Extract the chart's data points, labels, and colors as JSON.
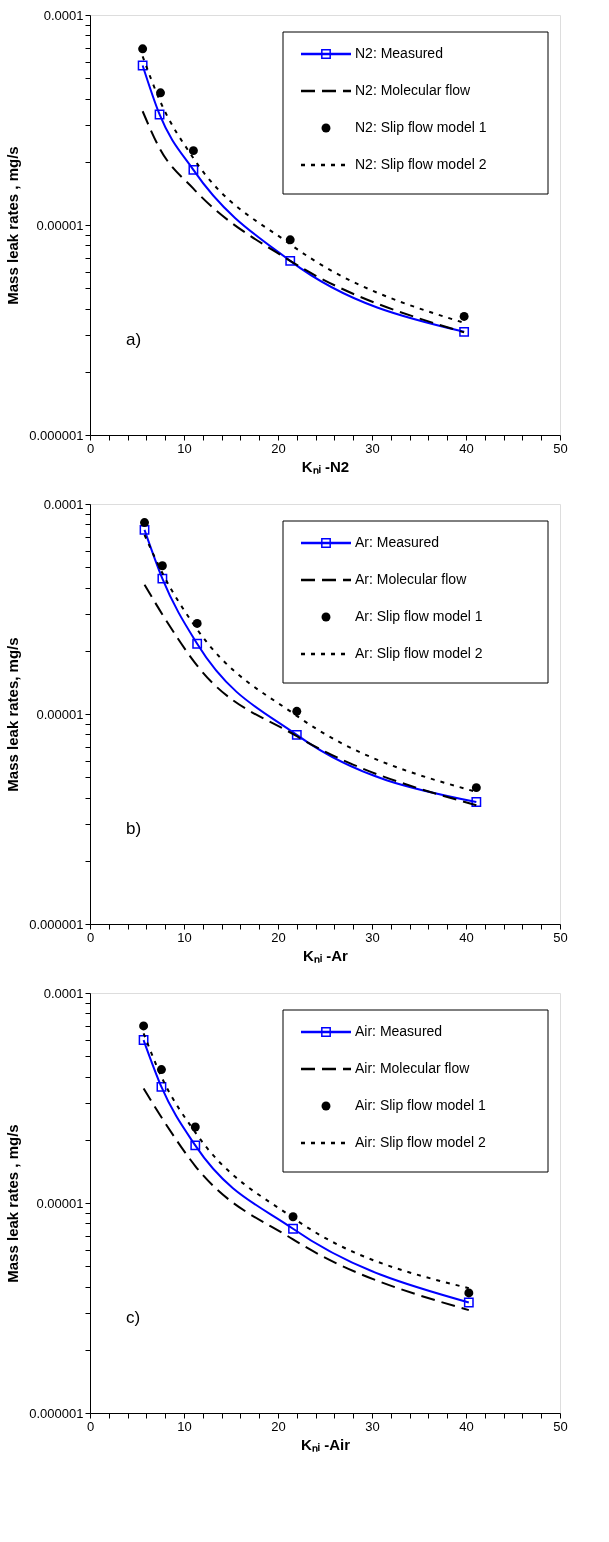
{
  "chart_data": [
    {
      "type": "line",
      "xlabel": "Kₙᵢ -N2",
      "ylabel": "Mass leak rates , mg/s",
      "log": "y",
      "grid": false,
      "legend": "top right",
      "annotations": [
        "a)"
      ],
      "xlim": [
        0,
        50
      ],
      "ylim": [
        1e-06,
        0.0001
      ],
      "xticks": [
        0,
        {
          "value": 2,
          "label": null
        },
        {
          "value": 4,
          "label": null
        },
        {
          "value": 6,
          "label": null
        },
        {
          "value": 8,
          "label": null
        },
        10,
        {
          "value": 12,
          "label": null
        },
        {
          "value": 14,
          "label": null
        },
        {
          "value": 16,
          "label": null
        },
        {
          "value": 18,
          "label": null
        },
        20,
        {
          "value": 22,
          "label": null
        },
        {
          "value": 24,
          "label": null
        },
        {
          "value": 26,
          "label": null
        },
        {
          "value": 28,
          "label": null
        },
        30,
        {
          "value": 32,
          "label": null
        },
        {
          "value": 34,
          "label": null
        },
        {
          "value": 36,
          "label": null
        },
        {
          "value": 38,
          "label": null
        },
        40,
        {
          "value": 42,
          "label": null
        },
        {
          "value": 44,
          "label": null
        },
        {
          "value": 46,
          "label": null
        },
        {
          "value": 48,
          "label": null
        },
        50
      ],
      "yticks": [
        {
          "value": 1e-06,
          "label": "0.000001"
        },
        {
          "value": 2e-06,
          "label": null
        },
        {
          "value": 3e-06,
          "label": null
        },
        {
          "value": 4e-06,
          "label": null
        },
        {
          "value": 5e-06,
          "label": null
        },
        {
          "value": 6e-06,
          "label": null
        },
        {
          "value": 7e-06,
          "label": null
        },
        {
          "value": 8e-06,
          "label": null
        },
        {
          "value": 9e-06,
          "label": null
        },
        {
          "value": 1e-05,
          "label": "0.00001"
        },
        {
          "value": 2e-05,
          "label": null
        },
        {
          "value": 3e-05,
          "label": null
        },
        {
          "value": 4e-05,
          "label": null
        },
        {
          "value": 5e-05,
          "label": null
        },
        {
          "value": 6e-05,
          "label": null
        },
        {
          "value": 7e-05,
          "label": null
        },
        {
          "value": 8e-05,
          "label": null
        },
        {
          "value": 9e-05,
          "label": null
        },
        {
          "value": 0.0001,
          "label": "0.0001"
        }
      ],
      "series": [
        {
          "name": "N2: Measured",
          "type": "line",
          "marker": "square",
          "line_style": "solid",
          "color": "#0000ff",
          "x": [
            5.6,
            7.4,
            11.0,
            21.3,
            39.8
          ],
          "values": [
            5.75e-05,
            3.36e-05,
            1.83e-05,
            6.75e-06,
            3.1e-06
          ]
        },
        {
          "name": "N2: Molecular flow",
          "type": "line",
          "marker": "none",
          "line_style": "dashed",
          "color": "#000000",
          "x": [
            5.6,
            7.4,
            11.0,
            21.3,
            39.8
          ],
          "values": [
            3.48e-05,
            2.32e-05,
            1.49e-05,
            6.75e-06,
            3.08e-06
          ]
        },
        {
          "name": "N2: Slip flow model 1",
          "type": "scatter",
          "marker": "circle",
          "color": "#000000",
          "x": [
            5.6,
            7.5,
            11.0,
            21.3,
            39.8
          ],
          "values": [
            6.9e-05,
            4.26e-05,
            2.26e-05,
            8.5e-06,
            3.67e-06
          ]
        },
        {
          "name": "N2: Slip flow model 2",
          "type": "line",
          "marker": "none",
          "line_style": "dotted",
          "color": "#000000",
          "x": [
            5.6,
            7.4,
            11.0,
            21.3,
            39.8
          ],
          "values": [
            6.35e-05,
            3.94e-05,
            2.08e-05,
            8.1e-06,
            3.42e-06
          ]
        }
      ]
    },
    {
      "type": "line",
      "xlabel": "Kₙᵢ -Ar",
      "ylabel": "Mass leak rates, mg/s",
      "log": "y",
      "grid": false,
      "legend": "top right",
      "annotations": [
        "b)"
      ],
      "xlim": [
        0,
        50
      ],
      "ylim": [
        1e-06,
        0.0001
      ],
      "xticks": [
        0,
        {
          "value": 2,
          "label": null
        },
        {
          "value": 4,
          "label": null
        },
        {
          "value": 6,
          "label": null
        },
        {
          "value": 8,
          "label": null
        },
        10,
        {
          "value": 12,
          "label": null
        },
        {
          "value": 14,
          "label": null
        },
        {
          "value": 16,
          "label": null
        },
        {
          "value": 18,
          "label": null
        },
        20,
        {
          "value": 22,
          "label": null
        },
        {
          "value": 24,
          "label": null
        },
        {
          "value": 26,
          "label": null
        },
        {
          "value": 28,
          "label": null
        },
        30,
        {
          "value": 32,
          "label": null
        },
        {
          "value": 34,
          "label": null
        },
        {
          "value": 36,
          "label": null
        },
        {
          "value": 38,
          "label": null
        },
        40,
        {
          "value": 42,
          "label": null
        },
        {
          "value": 44,
          "label": null
        },
        {
          "value": 46,
          "label": null
        },
        {
          "value": 48,
          "label": null
        },
        50
      ],
      "yticks": [
        {
          "value": 1e-06,
          "label": "0.000001"
        },
        {
          "value": 2e-06,
          "label": null
        },
        {
          "value": 3e-06,
          "label": null
        },
        {
          "value": 4e-06,
          "label": null
        },
        {
          "value": 5e-06,
          "label": null
        },
        {
          "value": 6e-06,
          "label": null
        },
        {
          "value": 7e-06,
          "label": null
        },
        {
          "value": 8e-06,
          "label": null
        },
        {
          "value": 9e-06,
          "label": null
        },
        {
          "value": 1e-05,
          "label": "0.00001"
        },
        {
          "value": 2e-05,
          "label": null
        },
        {
          "value": 3e-05,
          "label": null
        },
        {
          "value": 4e-05,
          "label": null
        },
        {
          "value": 5e-05,
          "label": null
        },
        {
          "value": 6e-05,
          "label": null
        },
        {
          "value": 7e-05,
          "label": null
        },
        {
          "value": 8e-05,
          "label": null
        },
        {
          "value": 9e-05,
          "label": null
        },
        {
          "value": 0.0001,
          "label": "0.0001"
        }
      ],
      "series": [
        {
          "name": "Ar: Measured",
          "type": "line",
          "marker": "square",
          "line_style": "solid",
          "color": "#0000ff",
          "x": [
            5.8,
            7.7,
            11.4,
            22.0,
            41.1
          ],
          "values": [
            7.53e-05,
            4.41e-05,
            2.16e-05,
            7.95e-06,
            3.81e-06
          ]
        },
        {
          "name": "Ar: Molecular flow",
          "type": "line",
          "marker": "none",
          "line_style": "dashed",
          "color": "#000000",
          "x": [
            5.8,
            7.7,
            11.4,
            22.0,
            41.1
          ],
          "values": [
            4.13e-05,
            2.98e-05,
            1.7e-05,
            7.84e-06,
            3.68e-06
          ]
        },
        {
          "name": "Ar: Slip flow model 1",
          "type": "scatter",
          "marker": "circle",
          "color": "#000000",
          "x": [
            5.8,
            7.7,
            11.4,
            22.0,
            41.1
          ],
          "values": [
            8.16e-05,
            5.08e-05,
            2.7e-05,
            1.03e-05,
            4.46e-06
          ]
        },
        {
          "name": "Ar: Slip flow model 2",
          "type": "line",
          "marker": "none",
          "line_style": "dotted",
          "color": "#000000",
          "x": [
            5.8,
            7.7,
            11.4,
            22.0,
            41.1
          ],
          "values": [
            7.13e-05,
            4.69e-05,
            2.53e-05,
            9.8e-06,
            4.26e-06
          ]
        }
      ]
    },
    {
      "type": "line",
      "xlabel": "Kₙᵢ -Air",
      "ylabel": "Mass leak rates , mg/s",
      "log": "y",
      "grid": false,
      "legend": "top right",
      "annotations": [
        "c)"
      ],
      "xlim": [
        0,
        50
      ],
      "ylim": [
        1e-06,
        0.0001
      ],
      "xticks": [
        0,
        {
          "value": 2,
          "label": null
        },
        {
          "value": 4,
          "label": null
        },
        {
          "value": 6,
          "label": null
        },
        {
          "value": 8,
          "label": null
        },
        10,
        {
          "value": 12,
          "label": null
        },
        {
          "value": 14,
          "label": null
        },
        {
          "value": 16,
          "label": null
        },
        {
          "value": 18,
          "label": null
        },
        20,
        {
          "value": 22,
          "label": null
        },
        {
          "value": 24,
          "label": null
        },
        {
          "value": 26,
          "label": null
        },
        {
          "value": 28,
          "label": null
        },
        30,
        {
          "value": 32,
          "label": null
        },
        {
          "value": 34,
          "label": null
        },
        {
          "value": 36,
          "label": null
        },
        {
          "value": 38,
          "label": null
        },
        40,
        {
          "value": 42,
          "label": null
        },
        {
          "value": 44,
          "label": null
        },
        {
          "value": 46,
          "label": null
        },
        {
          "value": 48,
          "label": null
        },
        50
      ],
      "yticks": [
        {
          "value": 1e-06,
          "label": "0.000001"
        },
        {
          "value": 2e-06,
          "label": null
        },
        {
          "value": 3e-06,
          "label": null
        },
        {
          "value": 4e-06,
          "label": null
        },
        {
          "value": 5e-06,
          "label": null
        },
        {
          "value": 6e-06,
          "label": null
        },
        {
          "value": 7e-06,
          "label": null
        },
        {
          "value": 8e-06,
          "label": null
        },
        {
          "value": 9e-06,
          "label": null
        },
        {
          "value": 1e-05,
          "label": "0.00001"
        },
        {
          "value": 2e-05,
          "label": null
        },
        {
          "value": 3e-05,
          "label": null
        },
        {
          "value": 4e-05,
          "label": null
        },
        {
          "value": 5e-05,
          "label": null
        },
        {
          "value": 6e-05,
          "label": null
        },
        {
          "value": 7e-05,
          "label": null
        },
        {
          "value": 8e-05,
          "label": null
        },
        {
          "value": 9e-05,
          "label": null
        },
        {
          "value": 0.0001,
          "label": "0.0001"
        }
      ],
      "series": [
        {
          "name": "Air: Measured",
          "type": "line",
          "marker": "square",
          "line_style": "solid",
          "color": "#0000ff",
          "x": [
            5.7,
            7.6,
            11.2,
            21.6,
            40.3
          ],
          "values": [
            5.97e-05,
            3.57e-05,
            1.88e-05,
            7.54e-06,
            3.36e-06
          ]
        },
        {
          "name": "Air: Molecular flow",
          "type": "line",
          "marker": "none",
          "line_style": "dashed",
          "color": "#000000",
          "x": [
            5.7,
            7.6,
            11.2,
            21.6,
            40.3
          ],
          "values": [
            3.51e-05,
            2.56e-05,
            1.5e-05,
            6.71e-06,
            3.09e-06
          ]
        },
        {
          "name": "Air: Slip flow model 1",
          "type": "scatter",
          "marker": "circle",
          "color": "#000000",
          "x": [
            5.7,
            7.6,
            11.2,
            21.6,
            40.3
          ],
          "values": [
            6.97e-05,
            4.32e-05,
            2.3e-05,
            8.6e-06,
            3.73e-06
          ]
        },
        {
          "name": "Air: Slip flow model 2",
          "type": "line",
          "marker": "none",
          "line_style": "dotted",
          "color": "#000000",
          "x": [
            5.7,
            7.6,
            11.2,
            21.6,
            40.3
          ],
          "values": [
            6.43e-05,
            3.99e-05,
            2.17e-05,
            8.5e-06,
            3.93e-06
          ]
        }
      ]
    }
  ]
}
